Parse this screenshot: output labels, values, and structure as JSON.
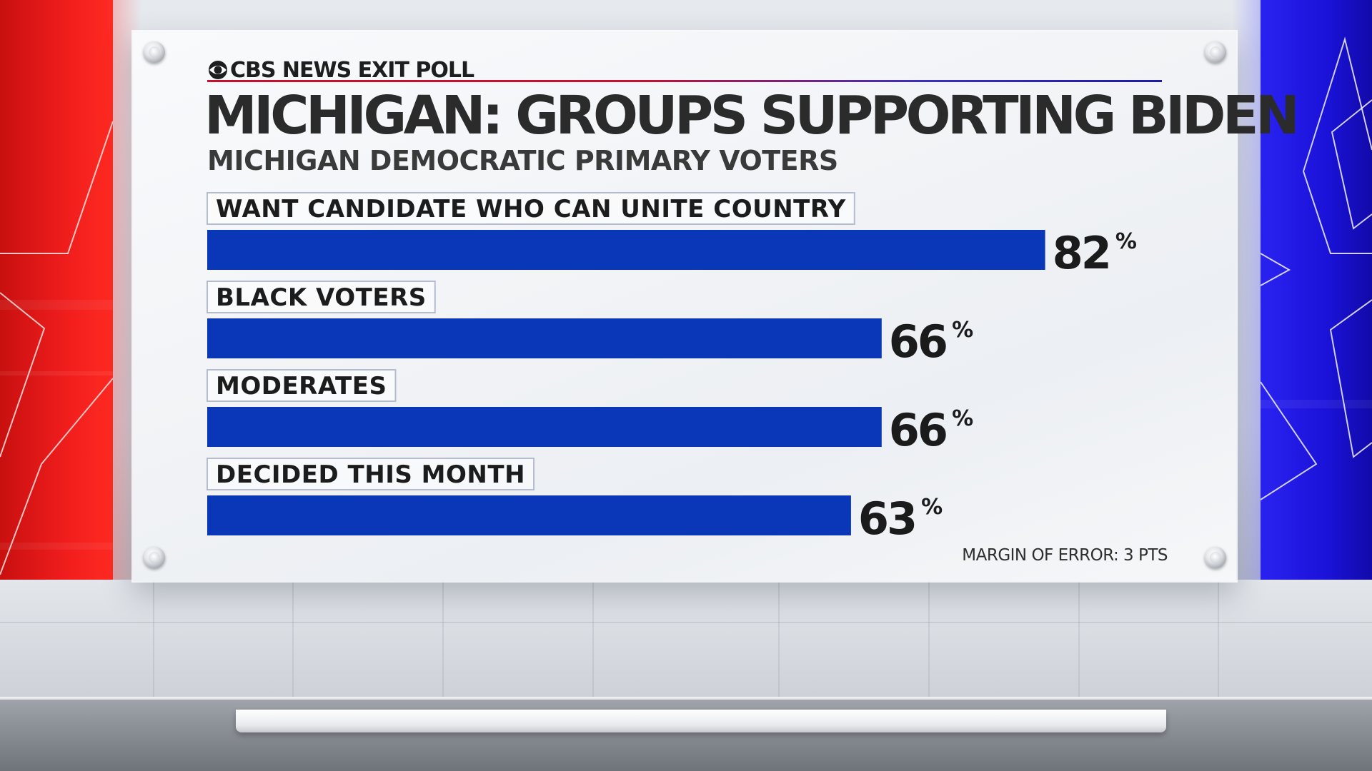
{
  "brand": {
    "name": "CBS NEWS EXIT POLL",
    "logo_icon": "cbs-eye-icon"
  },
  "chart_data": {
    "type": "bar",
    "orientation": "horizontal",
    "title": "MICHIGAN: GROUPS SUPPORTING BIDEN",
    "subtitle": "MICHIGAN DEMOCRATIC PRIMARY VOTERS",
    "categories": [
      "WANT CANDIDATE WHO CAN UNITE COUNTRY",
      "BLACK VOTERS",
      "MODERATES",
      "DECIDED THIS MONTH"
    ],
    "values": [
      82,
      66,
      66,
      63
    ],
    "value_suffix": "%",
    "xlim": [
      0,
      100
    ],
    "grid": false,
    "bar_color": "#0a36b8",
    "note": "MARGIN OF ERROR: 3 PTS"
  },
  "colors": {
    "left_panel": "#ee1c1c",
    "right_panel": "#1a12d8",
    "title_rule_red": "#c8102e",
    "title_rule_blue": "#1f1aa8"
  }
}
